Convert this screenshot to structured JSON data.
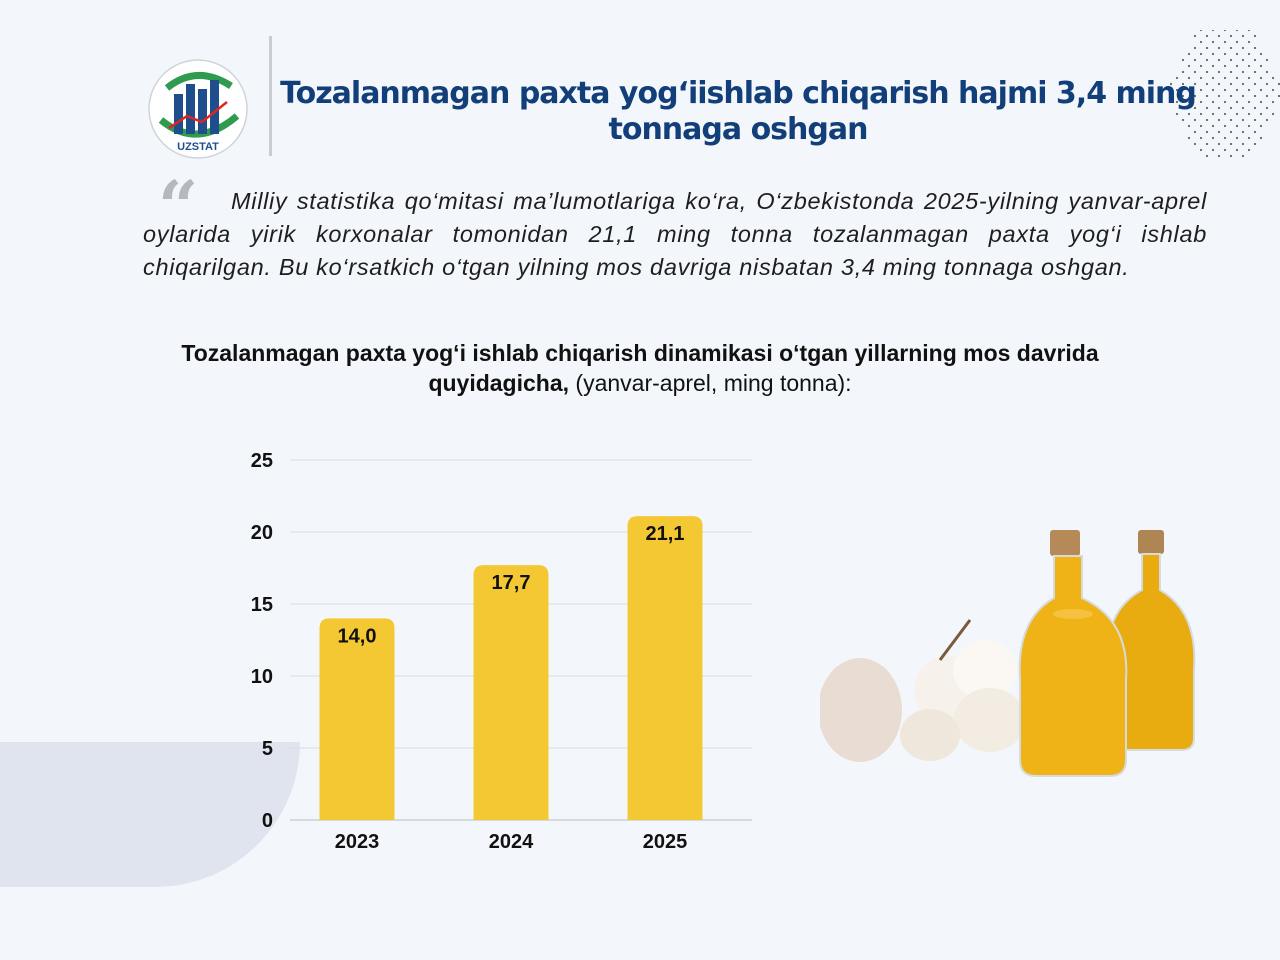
{
  "header": {
    "logo_text": "UZSTAT",
    "title": "Tozalanmagan paxta yog‘iishlab chiqarish hajmi 3,4 ming tonnaga oshgan"
  },
  "intro": {
    "quote_glyph": "“",
    "text": "Milliy statistika qo‘mitasi ma’lumotlariga ko‘ra, O‘zbekistonda 2025-yilning yanvar-aprel oylarida yirik korxonalar tomonidan 21,1 ming tonna tozalanmagan paxta yog‘i ishlab chiqarilgan. Bu ko‘rsatkich o‘tgan yilning mos davriga nisbatan 3,4 ming tonnaga oshgan."
  },
  "chart_heading": {
    "bold": "Tozalanmagan paxta yog‘i ishlab chiqarish dinamikasi o‘tgan yillarning mos davrida quyidagicha,",
    "normal": " (yanvar-aprel, ming tonna):"
  },
  "chart_data": {
    "type": "bar",
    "categories": [
      "2023",
      "2024",
      "2025"
    ],
    "values": [
      14.0,
      17.7,
      21.1
    ],
    "value_labels": [
      "14,0",
      "17,7",
      "21,1"
    ],
    "yticks": [
      0,
      5,
      10,
      15,
      20,
      25
    ],
    "ylim": [
      0,
      25
    ],
    "grid": true,
    "bar_color": "#f4c832",
    "grid_color": "#d9dde3"
  },
  "illustration": {
    "icons": [
      "cotton-boll-icon",
      "oil-bottle-icon"
    ],
    "oil_color": "#e9ac10",
    "cotton_color": "#f6f1ea"
  },
  "colors": {
    "title": "#123f7a",
    "background": "#f3f7fb",
    "logo_green": "#2e9b4f",
    "logo_red": "#e0251b"
  }
}
